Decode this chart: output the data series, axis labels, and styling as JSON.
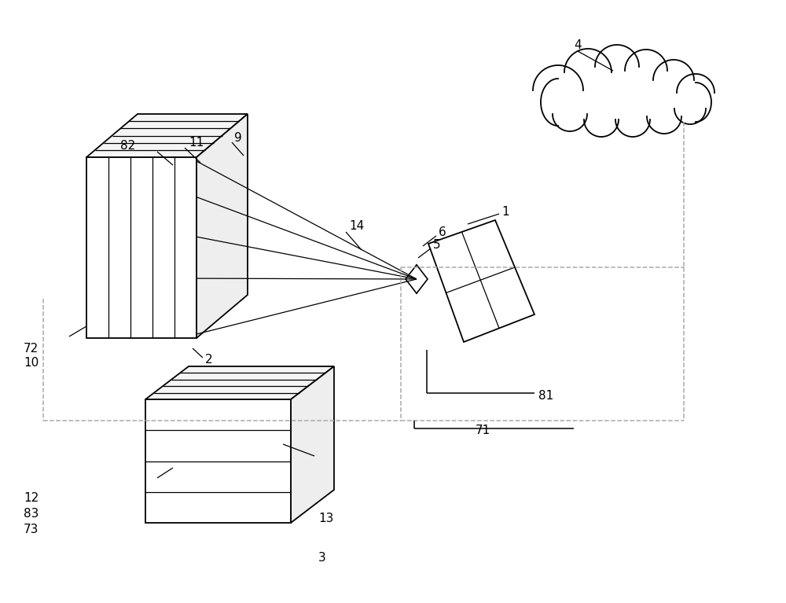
{
  "bg_color": "#ffffff",
  "line_color": "#000000",
  "dash_color": "#aaaaaa",
  "fig_w": 10.0,
  "fig_h": 7.67,
  "dpi": 100,
  "font_size": 11,
  "lw": 1.3,
  "lw_thin": 0.9
}
